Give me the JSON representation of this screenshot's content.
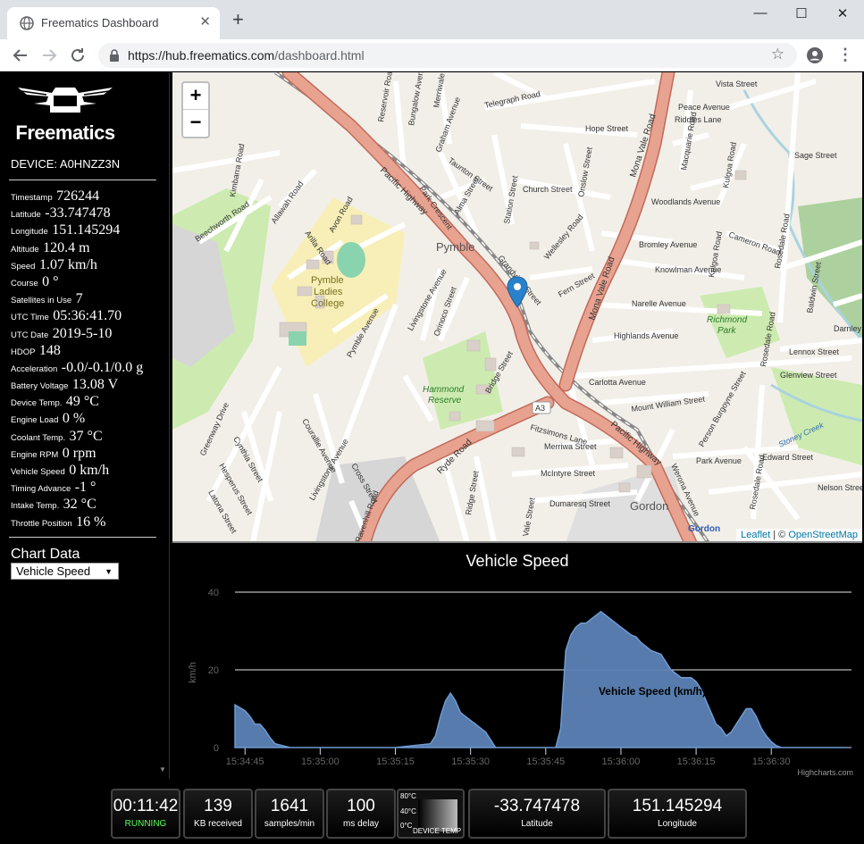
{
  "browser": {
    "tab_title": "Freematics Dashboard",
    "tab_close": "✕",
    "new_tab": "+",
    "url_host": "https://hub.freematics.com",
    "url_path": "/dashboard.html",
    "minimize": "—",
    "maximize": "☐",
    "close": "✕"
  },
  "sidebar": {
    "logo_text": "Freematics",
    "device_label": "DEVICE: A0HNZZ3N",
    "metrics": [
      {
        "label": "Timestamp",
        "value": "726244"
      },
      {
        "label": "Latitude",
        "value": "-33.747478"
      },
      {
        "label": "Longitude",
        "value": "151.145294"
      },
      {
        "label": "Altitude",
        "value": "120.4 m"
      },
      {
        "label": "Speed",
        "value": "1.07 km/h"
      },
      {
        "label": "Course",
        "value": "0 °"
      },
      {
        "label": "Satellites in Use",
        "value": "7"
      },
      {
        "label": "UTC Time",
        "value": "05:36:41.70"
      },
      {
        "label": "UTC Date",
        "value": "2019-5-10"
      },
      {
        "label": "HDOP",
        "value": "148"
      },
      {
        "label": "Acceleration",
        "value": "-0.0/-0.1/0.0 g"
      },
      {
        "label": "Battery Voltage",
        "value": "13.08 V"
      },
      {
        "label": "Device Temp.",
        "value": "49 °C"
      },
      {
        "label": "Engine Load",
        "value": "0 %"
      },
      {
        "label": "Coolant Temp.",
        "value": "37 °C"
      },
      {
        "label": "Engine RPM",
        "value": "0 rpm"
      },
      {
        "label": "Vehicle Speed",
        "value": "0 km/h"
      },
      {
        "label": "Timing Advance",
        "value": "-1 °"
      },
      {
        "label": "Intake Temp.",
        "value": "32 °C"
      },
      {
        "label": "Throttle Position",
        "value": "16 %"
      }
    ],
    "chart_data_label": "Chart Data",
    "chart_select_value": "Vehicle Speed"
  },
  "map": {
    "zoom_in": "+",
    "zoom_out": "−",
    "attribution_leaflet": "Leaflet",
    "attribution_sep": " | © ",
    "attribution_osm": "OpenStreetMap",
    "labels": {
      "pymble": "Pymble",
      "gordon": "Gordon",
      "gordon_station": "Gordon",
      "college": [
        "Pymble",
        "Ladies",
        "College"
      ],
      "hammond": [
        "Hammond",
        "Reserve"
      ],
      "richmond": [
        "Richmond",
        "Park"
      ],
      "pacific_hwy_1": "Pacific Highway",
      "pacific_hwy_2": "Pacific Highway",
      "mona_vale_1": "Mona Vale Road",
      "mona_vale_2": "Mona Vale Road",
      "ryde_road": "Ryde Road",
      "telegraph_road": "Telegraph Road",
      "a3": "A3",
      "vista_street": "Vista Street",
      "peace_avenue": "Peace Avenue",
      "riddles_lane": "Riddles Lane",
      "hope_street": "Hope Street",
      "church_street": "Church Street",
      "woodlands_avenue": "Woodlands Avenue",
      "bromley_avenue": "Bromley Avenue",
      "knowlman_avenue": "Knowlman Avenue",
      "narelle_avenue": "Narelle Avenue",
      "highlands_avenue": "Highlands Avenue",
      "carlotta_avenue": "Carlotta Avenue",
      "mount_william_street": "Mount William Street",
      "merriwa_street": "Merriwa Street",
      "mcintyre_street": "McIntyre Street",
      "dumaresq_street": "Dumaresq Street",
      "park_avenue": "Park Avenue",
      "edward_street": "Edward Street",
      "nelson_street": "Nelson Street",
      "lennox_street": "Lennox Street",
      "glenview_street": "Glenview Street",
      "darnley": "Darnley",
      "sage_street": "Sage Street",
      "cameron_road": "Cameron Road",
      "pymble_avenue": "Pymble Avenue",
      "livingstone_avenue": "Livingstone Avenue",
      "beechworth_road": "Beechworth Road",
      "cross_street": "Cross Street",
      "courallie_avenue": "Courallie Avenue",
      "bridge_street": "Bridge Street",
      "fitzsimons_lane": "Fitzsimons Lane",
      "stoney_creek": "Stoney Creek",
      "fern_street": "Fern Street",
      "station_street": "Station Street",
      "taunton_street": "Taunton Street",
      "park_crescent": "Park Crescent",
      "alma_street": "Alma Street",
      "grandview_street": "Grandview Street",
      "wellesley_road": "Wellesley Road",
      "kimbarra_road": "Kimbarra Road",
      "allawah_road": "Allawah Road",
      "arilla_road": "Arilla Road",
      "avon_road": "Avon Road",
      "graham_avenue": "Graham Avenue",
      "bungalow_avenue": "Bungalow Avenue",
      "merriwale_road": "Merriwale Road",
      "reservoir_road": "Reservoir Road",
      "orinoco_street": "Orinoco Street",
      "onslow_street": "Onslow Street",
      "macquarie_road": "Macquarie Road",
      "kulgoa_road": "Kulgoa Road",
      "rosedale_road": "Rosedale Road",
      "baldwin_street": "Baldwin Street",
      "person_burgoyne_street": "Person Burgoyne Street",
      "werona_avenue": "Werona Avenue",
      "greenway_drive": "Greenway Drive",
      "cynthia_street": "Cynthia Street",
      "hesperus_street": "Hesperus Street",
      "latona_street": "Latona Street",
      "ridge_street": "Ridge Street",
      "vale_street": "Vale Street",
      "ravenhill_road": "Ravenhill Road"
    }
  },
  "chart": {
    "title": "Vehicle Speed",
    "ylabel": "km/h",
    "series_label": "Vehicle Speed (km/h)",
    "credits": "Highcharts.com"
  },
  "chart_data": {
    "type": "area",
    "title": "Vehicle Speed",
    "xlabel": "",
    "ylabel": "km/h",
    "ylim": [
      0,
      40
    ],
    "yticks": [
      "0",
      "20",
      "40"
    ],
    "xlim_seconds": [
      -2,
      121
    ],
    "xticks": [
      {
        "t": 0,
        "label": "15:34:45"
      },
      {
        "t": 15,
        "label": "15:35:00"
      },
      {
        "t": 30,
        "label": "15:35:15"
      },
      {
        "t": 45,
        "label": "15:35:30"
      },
      {
        "t": 60,
        "label": "15:35:45"
      },
      {
        "t": 75,
        "label": "15:36:00"
      },
      {
        "t": 90,
        "label": "15:36:15"
      },
      {
        "t": 105,
        "label": "15:36:30"
      }
    ],
    "grid": true,
    "series": [
      {
        "name": "Vehicle Speed (km/h)",
        "color": "#5b82b5",
        "t": [
          -2,
          0,
          1,
          2,
          3,
          4,
          5,
          6,
          9,
          30,
          37,
          38,
          39,
          40,
          41,
          42,
          43,
          44,
          45,
          46,
          47,
          48,
          49,
          50,
          62,
          63,
          63.5,
          64,
          65,
          66,
          67,
          68,
          69,
          70,
          71,
          72,
          73,
          74,
          75,
          76,
          77,
          78,
          79,
          80,
          81,
          82,
          83,
          84,
          85,
          86,
          87,
          88,
          89,
          90,
          91,
          92,
          93,
          94,
          95,
          96,
          97,
          98,
          99,
          100,
          101,
          102,
          103,
          104,
          105,
          106,
          107,
          108,
          109,
          110,
          111,
          120
        ],
        "values": [
          11,
          9.5,
          8,
          6,
          6,
          4.5,
          2.5,
          1,
          0,
          0,
          1,
          3,
          8,
          12,
          14,
          12,
          9,
          8,
          7,
          6,
          5,
          4,
          2,
          0,
          0,
          5,
          15,
          25,
          29,
          31,
          32,
          32,
          33,
          34,
          35,
          34,
          33,
          32,
          31,
          30,
          29,
          28.5,
          27,
          26,
          25,
          24.5,
          24,
          22,
          20,
          19,
          18,
          18,
          18,
          17,
          15,
          12,
          9,
          6,
          5,
          3,
          4,
          6,
          8,
          10,
          10,
          8,
          5,
          3,
          1.5,
          0.5,
          0,
          0,
          0,
          0,
          0,
          0
        ]
      }
    ]
  },
  "bottombar": {
    "elapsed": "00:11:42",
    "status": "RUNNING",
    "kb": "139",
    "kb_label": "KB received",
    "rate": "1641",
    "rate_label": "samples/min",
    "delay": "100",
    "delay_label": "ms delay",
    "temp_80": "80°C",
    "temp_40": "40°C",
    "temp_0": "0°C",
    "temp_label": "DEVICE TEMP",
    "lat": "-33.747478",
    "lat_label": "Latitude",
    "lon": "151.145294",
    "lon_label": "Longitude"
  }
}
